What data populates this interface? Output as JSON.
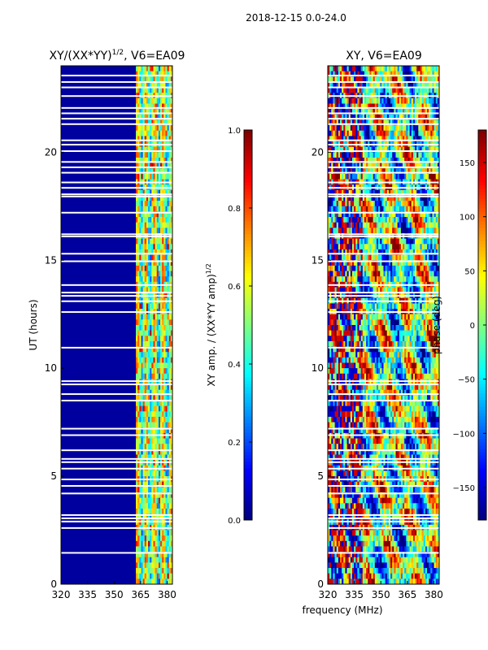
{
  "suptitle": "2018-12-15 0.0-24.0",
  "chart_data": [
    {
      "type": "heatmap",
      "title_main": "XY/(XX*YY)",
      "title_sup": "1/2",
      "title_tail": ", V6=EA09",
      "ylabel": "UT (hours)",
      "xlim": [
        320,
        383
      ],
      "ylim": [
        0,
        24
      ],
      "xticks": [
        320,
        335,
        350,
        365,
        380
      ],
      "yticks": [
        0,
        5,
        10,
        15,
        20
      ],
      "gap_hours": [
        1.45,
        2.6,
        2.9,
        3.05,
        3.2,
        4.2,
        4.55,
        4.85,
        5.35,
        5.65,
        5.8,
        6.2,
        6.9,
        7.2,
        8.5,
        8.8,
        9.25,
        9.4,
        10.95,
        12.6,
        13.1,
        13.35,
        13.5,
        13.85,
        14.95,
        15.3,
        16.1,
        16.2,
        17.2,
        17.95,
        18.05,
        18.35,
        18.6,
        19.05,
        19.3,
        19.55,
        20.05,
        20.35,
        20.55,
        21.3,
        21.55,
        21.8,
        22.05,
        22.6,
        23.0,
        23.25,
        23.55
      ],
      "bright_band_mhz": [
        362,
        383
      ],
      "colorbar": {
        "label_main": "XY amp. / (XX*YY amp)",
        "label_sup": "1/2",
        "min": 0.0,
        "max": 1.0,
        "ticks": [
          "0.0",
          "0.2",
          "0.4",
          "0.6",
          "0.8",
          "1.0"
        ]
      }
    },
    {
      "type": "heatmap",
      "title": "XY, V6=EA09",
      "xlabel": "frequency (MHz)",
      "xlim": [
        320,
        383
      ],
      "ylim": [
        0,
        24
      ],
      "xticks": [
        320,
        335,
        350,
        365,
        380
      ],
      "yticks": [
        0,
        5,
        10,
        15,
        20
      ],
      "gap_hours": [
        1.45,
        2.6,
        2.9,
        3.05,
        3.2,
        4.2,
        4.55,
        4.85,
        5.35,
        5.65,
        5.8,
        6.2,
        6.9,
        7.2,
        8.5,
        8.8,
        9.25,
        9.4,
        10.95,
        12.6,
        13.1,
        13.35,
        13.5,
        13.85,
        14.95,
        15.3,
        16.1,
        16.2,
        17.2,
        17.95,
        18.05,
        18.35,
        18.6,
        19.05,
        19.3,
        19.55,
        20.05,
        20.35,
        20.55,
        21.3,
        21.55,
        21.8,
        22.05,
        22.6,
        23.0,
        23.25,
        23.55
      ],
      "colorbar": {
        "label": "phase (deg)",
        "min": -180,
        "max": 180,
        "ticks": [
          -150,
          -100,
          -50,
          0,
          50,
          100,
          150
        ]
      }
    }
  ]
}
